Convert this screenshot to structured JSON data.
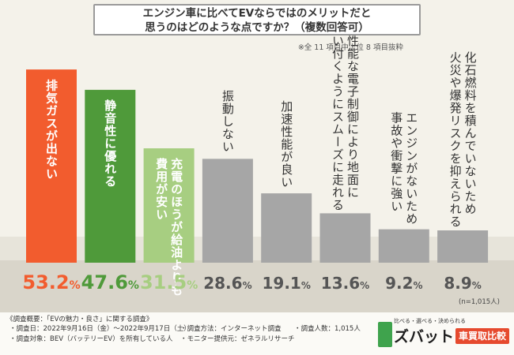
{
  "header": {
    "title_line1": "エンジン車に比べてEVならではのメリットだと",
    "title_line2": "思うのはどのような点ですか？（複数回答可）",
    "note": "※全 11 項目中上位 8 項目抜粋"
  },
  "sample_note": "(n=1,015人)",
  "chart_data": {
    "type": "bar",
    "categories": [
      "排気ガスが出ない",
      "静音性に優れる",
      "充電のほうが給油よりも費用が安い",
      "振動しない",
      "加速性能が良い",
      "高性能な電子制御により地面に吸い付くようにスムーズに走れる",
      "エンジンがないため事故や衝撃に強い",
      "化石燃料を積んでいないため火災や爆発リスクを抑えられる"
    ],
    "category_lines": [
      [
        "排気ガスが出ない"
      ],
      [
        "静音性に優れる"
      ],
      [
        "充電のほうが給油よりも",
        "費用が安い"
      ],
      [
        "振動しない"
      ],
      [
        "加速性能が良い"
      ],
      [
        "高性能な電子制御により地面に",
        "吸い付くようにスムーズに走れる"
      ],
      [
        "エンジンがないため",
        "事故や衝撃に強い"
      ],
      [
        "化石燃料を積んでいないため",
        "火災や爆発リスクを抑えられる"
      ]
    ],
    "values": [
      53.2,
      47.6,
      31.5,
      28.6,
      19.1,
      13.6,
      9.2,
      8.9
    ],
    "value_labels": [
      "53.2",
      "47.6",
      "31.5",
      "28.6",
      "19.1",
      "13.6",
      "9.2",
      "8.9"
    ],
    "unit": "%",
    "ylim": [
      0,
      60
    ],
    "colors": {
      "bars": [
        "#f25c2e",
        "#4f9a3a",
        "#a7ce81",
        "#a6a6a6",
        "#a6a6a6",
        "#a6a6a6",
        "#a6a6a6",
        "#a6a6a6"
      ],
      "label_text": [
        "#ffffff",
        "#ffffff",
        "#ffffff",
        "#333333",
        "#333333",
        "#333333",
        "#333333",
        "#333333"
      ],
      "value_text": [
        "#f25c2e",
        "#4f9a3a",
        "#a7ce81",
        "#555555",
        "#555555",
        "#555555",
        "#555555",
        "#555555"
      ]
    }
  },
  "footer": {
    "survey_title": "《調査概要：「EVの魅力・良さ」に関する調査》",
    "period": "・調査日：2022年9月16日（金）～2022年9月17日（土）",
    "method": "・調査方法：インターネット調査",
    "count": "・調査人数：1,015人",
    "target": "・調査対象：BEV（バッテリーEV）を所有している人",
    "provider": "・モニター提供元：ゼネラルリサーチ"
  },
  "logo": {
    "tagline": "比べる・選べる・決められる",
    "name": "ズバット",
    "badge": "車買取比較"
  }
}
